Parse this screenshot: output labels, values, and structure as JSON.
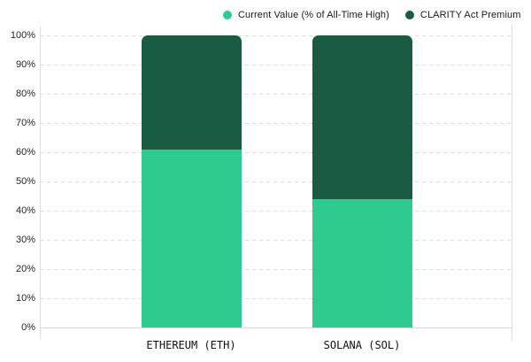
{
  "chart_data": {
    "type": "bar",
    "stacked": true,
    "title": "",
    "categories": [
      "ETHEREUM (ETH)",
      "SOLANA (SOL)"
    ],
    "series": [
      {
        "name": "Current Value (% of All-Time High)",
        "color": "#2fcb8e",
        "values": [
          61,
          44
        ]
      },
      {
        "name": "CLARITY Act Premium",
        "color": "#1a5c42",
        "values": [
          39,
          56
        ]
      }
    ],
    "ylim": [
      0,
      100
    ],
    "ytick_step": 10,
    "ytick_suffix": "%",
    "grid": "horizontal-dashed",
    "legend_position": "top"
  },
  "colors": {
    "background": "#ffffff",
    "series_current": "#2fcb8e",
    "series_premium": "#1a5c42",
    "gridline": "#dcdcdc",
    "axis_line": "#dedede",
    "tick_label": "#262626",
    "category_label": "#111111",
    "legend_label": "#1a1a1a"
  }
}
